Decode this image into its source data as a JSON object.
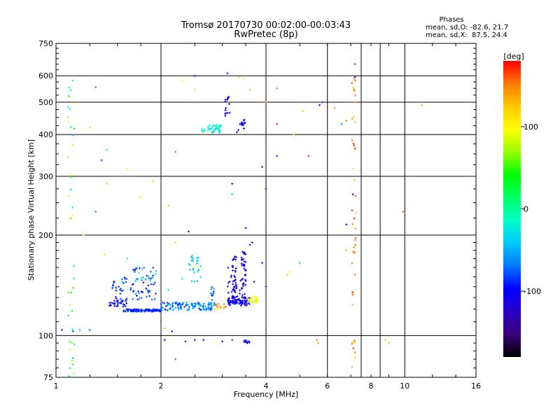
{
  "chart_data": {
    "type": "scatter",
    "title": "Tromsø 20170730 00:02:00-00:03:43",
    "subtitle": "RwPretec (8p)",
    "xlabel": "Frequency [MHz]",
    "ylabel": "Stationary phase Virtual Height [km]",
    "x_scale": "log",
    "y_scale": "log",
    "xlim": [
      1,
      16
    ],
    "ylim": [
      75,
      750
    ],
    "x_ticks": [
      "1",
      "2",
      "4",
      "6",
      "8",
      "10",
      "16"
    ],
    "x_tick_values": [
      1,
      2,
      4,
      6,
      8,
      10,
      16
    ],
    "x_grid_values": [
      2,
      4,
      6,
      7.5,
      8.5,
      10
    ],
    "y_ticks": [
      "75",
      "100",
      "200",
      "300",
      "400",
      "500",
      "600",
      "750"
    ],
    "y_tick_values": [
      75,
      100,
      200,
      300,
      400,
      500,
      600,
      750
    ],
    "y_grid_values": [
      100,
      200,
      300,
      400,
      500,
      600
    ],
    "grid": true,
    "legend": {
      "title": "Phases",
      "line1": "mean, sd,O: -82.6, 21.7",
      "line2": "mean, sd,X:  87.5, 24.4",
      "placement": "top-right"
    },
    "colorbar": {
      "label": "[deg]",
      "ticks": [
        "100",
        "0",
        "-100"
      ],
      "tick_values": [
        100,
        0,
        -100
      ],
      "range": [
        -180,
        180
      ],
      "colors": [
        "#000000",
        "#3c0078",
        "#2800c8",
        "#0000ff",
        "#0078ff",
        "#00c8ff",
        "#00ffc8",
        "#00ff64",
        "#00ff00",
        "#96ff00",
        "#ffff00",
        "#ffc800",
        "#ff7800",
        "#ff0000"
      ]
    },
    "clusters": [
      {
        "freq": [
          1.56,
          2.0
        ],
        "height": [
          118,
          120
        ],
        "phase": [
          -100,
          -80
        ],
        "n": 120
      },
      {
        "freq": [
          1.42,
          1.6
        ],
        "height": [
          122,
          128
        ],
        "phase": [
          -110,
          -85
        ],
        "n": 30
      },
      {
        "freq": [
          2.0,
          2.85
        ],
        "height": [
          119,
          126
        ],
        "phase": [
          -90,
          -40
        ],
        "n": 110
      },
      {
        "freq": [
          2.85,
          3.1
        ],
        "height": [
          120,
          125
        ],
        "phase": [
          110,
          170
        ],
        "n": 12
      },
      {
        "freq": [
          3.1,
          3.6
        ],
        "height": [
          123,
          130
        ],
        "phase": [
          -120,
          -95
        ],
        "n": 70
      },
      {
        "freq": [
          3.55,
          3.8
        ],
        "height": [
          125,
          131
        ],
        "phase": [
          80,
          110
        ],
        "n": 25
      },
      {
        "freq": [
          1.45,
          1.95
        ],
        "height": [
          128,
          150
        ],
        "phase": [
          -110,
          -60
        ],
        "n": 60
      },
      {
        "freq": [
          1.65,
          1.95
        ],
        "height": [
          145,
          160
        ],
        "phase": [
          -100,
          -20
        ],
        "n": 25
      },
      {
        "freq": [
          2.4,
          2.6
        ],
        "height": [
          145,
          175
        ],
        "phase": [
          -60,
          -20
        ],
        "n": 25
      },
      {
        "freq": [
          2.75,
          2.85
        ],
        "height": [
          120,
          140
        ],
        "phase": [
          -100,
          -50
        ],
        "n": 12
      },
      {
        "freq": [
          3.2,
          3.3
        ],
        "height": [
          125,
          175
        ],
        "phase": [
          -120,
          -100
        ],
        "n": 40
      },
      {
        "freq": [
          3.4,
          3.5
        ],
        "height": [
          125,
          180
        ],
        "phase": [
          -120,
          -100
        ],
        "n": 45
      },
      {
        "freq": [
          3.1,
          3.4
        ],
        "height": [
          130,
          160
        ],
        "phase": [
          -120,
          -100
        ],
        "n": 20
      },
      {
        "freq": [
          2.62,
          3.0
        ],
        "height": [
          405,
          428
        ],
        "phase": [
          -40,
          -10
        ],
        "n": 40
      },
      {
        "freq": [
          3.05,
          3.15
        ],
        "height": [
          450,
          520
        ],
        "phase": [
          -115,
          -100
        ],
        "n": 14
      },
      {
        "freq": [
          3.3,
          3.5
        ],
        "height": [
          400,
          450
        ],
        "phase": [
          -115,
          -100
        ],
        "n": 14
      },
      {
        "freq": [
          3.45,
          3.6
        ],
        "height": [
          95,
          98
        ],
        "phase": [
          -110,
          -90
        ],
        "n": 10
      },
      {
        "freq": [
          7.05,
          7.25
        ],
        "height": [
          80,
          600
        ],
        "phase": [
          120,
          170
        ],
        "n": 45
      },
      {
        "freq": [
          1.08,
          1.13
        ],
        "height": [
          75,
          600
        ],
        "phase": [
          -40,
          110
        ],
        "n": 40
      }
    ],
    "points": [
      {
        "freq": 1.3,
        "height": 555,
        "phase": -60
      },
      {
        "freq": 2.5,
        "height": 600,
        "phase": -120
      },
      {
        "freq": 3.1,
        "height": 610,
        "phase": -130
      },
      {
        "freq": 3.35,
        "height": 595,
        "phase": 120
      },
      {
        "freq": 3.45,
        "height": 590,
        "phase": 120
      },
      {
        "freq": 3.6,
        "height": 545,
        "phase": 120
      },
      {
        "freq": 4.3,
        "height": 550,
        "phase": 150
      },
      {
        "freq": 4.0,
        "height": 500,
        "phase": 160
      },
      {
        "freq": 5.1,
        "height": 470,
        "phase": 70
      },
      {
        "freq": 5.7,
        "height": 490,
        "phase": -100
      },
      {
        "freq": 5.8,
        "height": 500,
        "phase": -120
      },
      {
        "freq": 6.3,
        "height": 480,
        "phase": 130
      },
      {
        "freq": 6.6,
        "height": 430,
        "phase": -60
      },
      {
        "freq": 6.8,
        "height": 440,
        "phase": 150
      },
      {
        "freq": 7.2,
        "height": 650,
        "phase": 170
      },
      {
        "freq": 7.2,
        "height": 595,
        "phase": -110
      },
      {
        "freq": 11.2,
        "height": 490,
        "phase": 140
      },
      {
        "freq": 4.3,
        "height": 430,
        "phase": 170
      },
      {
        "freq": 4.8,
        "height": 400,
        "phase": 60
      },
      {
        "freq": 5.3,
        "height": 345,
        "phase": 170
      },
      {
        "freq": 4.3,
        "height": 345,
        "phase": -90
      },
      {
        "freq": 3.9,
        "height": 320,
        "phase": -130
      },
      {
        "freq": 4.0,
        "height": 275,
        "phase": -110
      },
      {
        "freq": 3.2,
        "height": 285,
        "phase": -130
      },
      {
        "freq": 3.2,
        "height": 265,
        "phase": 10
      },
      {
        "freq": 3.5,
        "height": 210,
        "phase": -110
      },
      {
        "freq": 2.4,
        "height": 205,
        "phase": -130
      },
      {
        "freq": 2.2,
        "height": 355,
        "phase": 160
      },
      {
        "freq": 1.75,
        "height": 260,
        "phase": 100
      },
      {
        "freq": 1.9,
        "height": 290,
        "phase": 120
      },
      {
        "freq": 1.6,
        "height": 315,
        "phase": 100
      },
      {
        "freq": 1.35,
        "height": 335,
        "phase": -80
      },
      {
        "freq": 1.4,
        "height": 360,
        "phase": 30
      },
      {
        "freq": 1.4,
        "height": 285,
        "phase": 120
      },
      {
        "freq": 1.3,
        "height": 235,
        "phase": -60
      },
      {
        "freq": 1.25,
        "height": 420,
        "phase": 120
      },
      {
        "freq": 1.2,
        "height": 200,
        "phase": 100
      },
      {
        "freq": 1.38,
        "height": 175,
        "phase": 80
      },
      {
        "freq": 1.6,
        "height": 170,
        "phase": -20
      },
      {
        "freq": 2.1,
        "height": 245,
        "phase": 60
      },
      {
        "freq": 2.2,
        "height": 190,
        "phase": 80
      },
      {
        "freq": 6.8,
        "height": 215,
        "phase": -100
      },
      {
        "freq": 7.1,
        "height": 265,
        "phase": -130
      },
      {
        "freq": 9.9,
        "height": 235,
        "phase": 160
      },
      {
        "freq": 6.8,
        "height": 180,
        "phase": 130
      },
      {
        "freq": 4.6,
        "height": 152,
        "phase": 120
      },
      {
        "freq": 4.7,
        "height": 155,
        "phase": 110
      },
      {
        "freq": 5.0,
        "height": 165,
        "phase": -30
      },
      {
        "freq": 3.9,
        "height": 165,
        "phase": -110
      },
      {
        "freq": 4.0,
        "height": 140,
        "phase": -100
      },
      {
        "freq": 3.7,
        "height": 145,
        "phase": -110
      },
      {
        "freq": 2.3,
        "height": 148,
        "phase": -20
      },
      {
        "freq": 2.1,
        "height": 137,
        "phase": -30
      },
      {
        "freq": 2.15,
        "height": 103,
        "phase": -130
      },
      {
        "freq": 2.05,
        "height": 97,
        "phase": -100
      },
      {
        "freq": 2.35,
        "height": 96,
        "phase": -110
      },
      {
        "freq": 2.5,
        "height": 97,
        "phase": -90
      },
      {
        "freq": 2.65,
        "height": 97,
        "phase": -100
      },
      {
        "freq": 3.2,
        "height": 97,
        "phase": -80
      },
      {
        "freq": 3.0,
        "height": 96,
        "phase": -110
      },
      {
        "freq": 2.2,
        "height": 85,
        "phase": -60
      },
      {
        "freq": 1.12,
        "height": 103,
        "phase": -80
      },
      {
        "freq": 1.17,
        "height": 104,
        "phase": -50
      },
      {
        "freq": 1.25,
        "height": 104,
        "phase": -70
      },
      {
        "freq": 1.04,
        "height": 104,
        "phase": -90
      },
      {
        "freq": 5.6,
        "height": 97,
        "phase": 150
      },
      {
        "freq": 5.65,
        "height": 95,
        "phase": 150
      },
      {
        "freq": 8.8,
        "height": 97,
        "phase": 70
      },
      {
        "freq": 9.0,
        "height": 95,
        "phase": 80
      },
      {
        "freq": 2.05,
        "height": 105,
        "phase": 130
      },
      {
        "freq": 3.75,
        "height": 125,
        "phase": 90
      },
      {
        "freq": 3.6,
        "height": 187,
        "phase": -120
      },
      {
        "freq": 3.65,
        "height": 190,
        "phase": -110
      },
      {
        "freq": 2.55,
        "height": 160,
        "phase": 90
      },
      {
        "freq": 1.55,
        "height": 145,
        "phase": -40
      },
      {
        "freq": 1.85,
        "height": 148,
        "phase": 10
      },
      {
        "freq": 2.5,
        "height": 545,
        "phase": 100
      },
      {
        "freq": 2.3,
        "height": 580,
        "phase": 100
      }
    ]
  }
}
